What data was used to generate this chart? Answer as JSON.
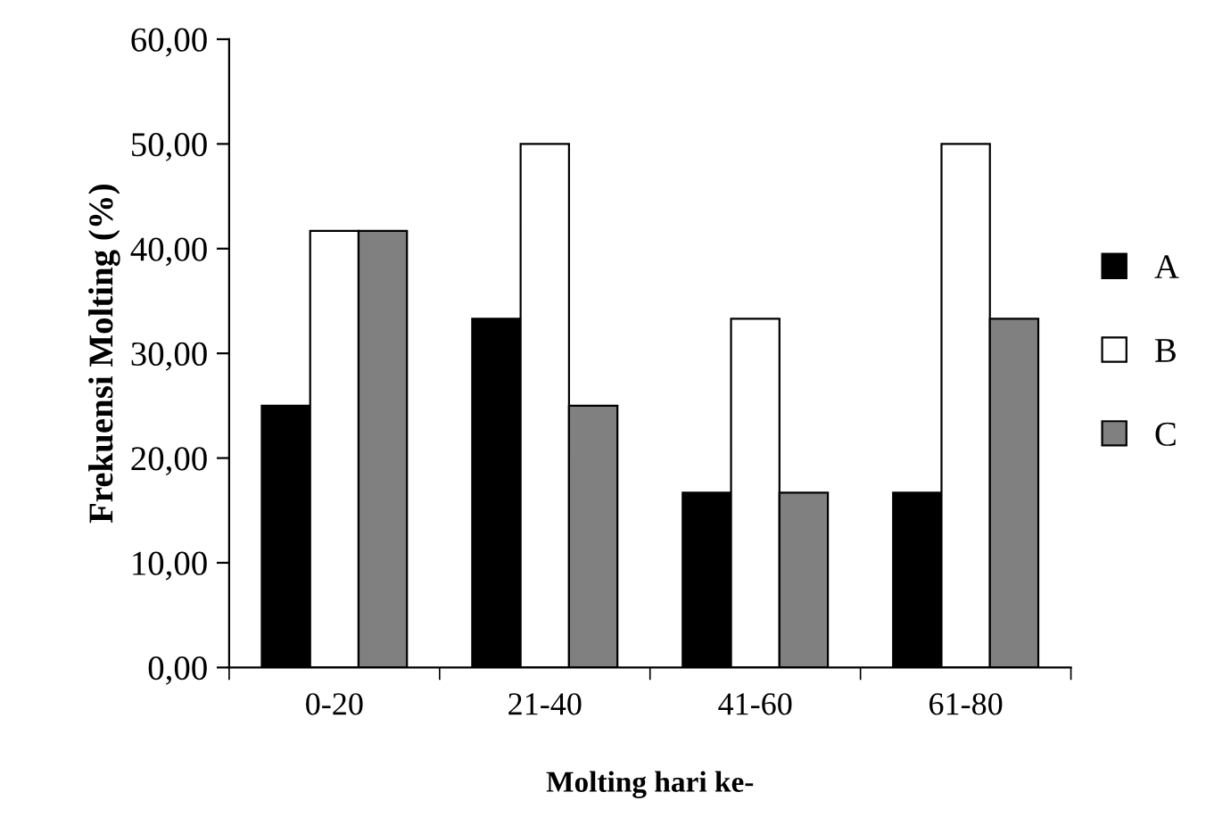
{
  "chart_data": {
    "type": "bar",
    "xlabel": "Molting hari ke-",
    "ylabel": "Frekuensi Molting (%)",
    "categories": [
      "0-20",
      "21-40",
      "41-60",
      "61-80"
    ],
    "series": [
      {
        "name": "A",
        "color": "#000000",
        "values": [
          25.0,
          33.3,
          16.7,
          16.7
        ]
      },
      {
        "name": "B",
        "color": "#ffffff",
        "values": [
          41.7,
          50.0,
          33.3,
          50.0
        ]
      },
      {
        "name": "C",
        "color": "#808080",
        "values": [
          41.7,
          25.0,
          16.7,
          33.3
        ]
      }
    ],
    "ylim": [
      0,
      60
    ],
    "yticks": [
      {
        "value": 0,
        "label": "0,00"
      },
      {
        "value": 10,
        "label": "10,00"
      },
      {
        "value": 20,
        "label": "20,00"
      },
      {
        "value": 30,
        "label": "30,00"
      },
      {
        "value": 40,
        "label": "40,00"
      },
      {
        "value": 50,
        "label": "50,00"
      },
      {
        "value": 60,
        "label": "60,00"
      }
    ],
    "grid": false,
    "legend": "right"
  }
}
